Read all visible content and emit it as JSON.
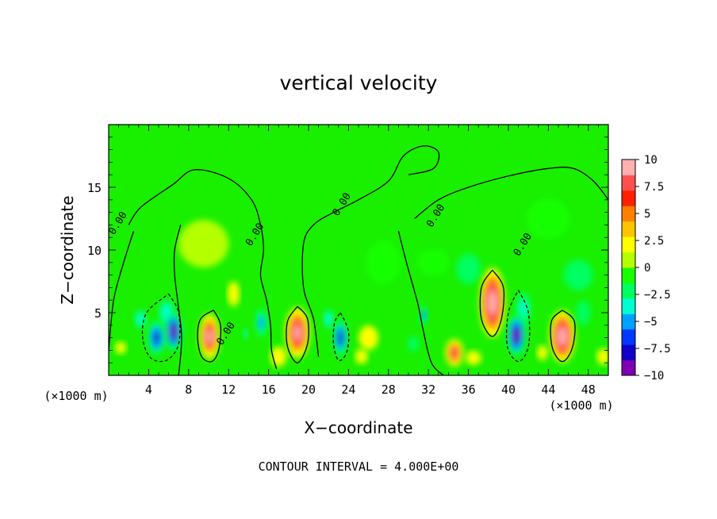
{
  "chart_data": {
    "type": "heatmap",
    "title": "vertical velocity",
    "xlabel": "X−coordinate",
    "ylabel": "Z−coordinate",
    "x_unit_left": "(×1000 m)",
    "x_unit_right": "(×1000 m)",
    "footer": "CONTOUR INTERVAL = 4.000E+00",
    "xlim": [
      0,
      50
    ],
    "ylim": [
      0,
      20
    ],
    "x_ticks": [
      4,
      8,
      12,
      16,
      20,
      24,
      28,
      32,
      36,
      40,
      44,
      48
    ],
    "x_tick_labels": [
      "4",
      "8",
      "12",
      "16",
      "20",
      "24",
      "28",
      "32",
      "36",
      "40",
      "44",
      "48"
    ],
    "y_ticks": [
      5,
      10,
      15
    ],
    "y_tick_labels": [
      "5",
      "10",
      "15"
    ],
    "colorbar": {
      "range": [
        -10,
        10
      ],
      "ticks": [
        10,
        7.5,
        5,
        2.5,
        0,
        -2.5,
        -5,
        -7.5,
        -10
      ],
      "tick_labels": [
        "10",
        "7.5",
        "5",
        "2.5",
        "0",
        "−2.5",
        "−5",
        "−7.5",
        "−10"
      ],
      "colors": [
        "#7d00b4",
        "#1000c8",
        "#0038ff",
        "#00a0ff",
        "#00ffd0",
        "#00ff60",
        "#18ff00",
        "#b4ff00",
        "#ffff00",
        "#ffc400",
        "#ff8000",
        "#ff2000",
        "#ff5050",
        "#ffb0b0"
      ]
    },
    "contour_labels": [
      {
        "text": "0.00",
        "x": 1.2,
        "y": 12.0
      },
      {
        "text": "0.00",
        "x": 14.9,
        "y": 11.1
      },
      {
        "text": "0.00",
        "x": 23.6,
        "y": 13.5
      },
      {
        "text": "0.00",
        "x": 33.0,
        "y": 12.6
      },
      {
        "text": "0.00",
        "x": 41.7,
        "y": 10.3
      },
      {
        "text": "0.00",
        "x": 12.0,
        "y": 3.2
      }
    ],
    "cells": [
      {
        "x": 10.1,
        "y": 3.1,
        "sx": 1.1,
        "sy": 1.9,
        "v": 9.0
      },
      {
        "x": 18.9,
        "y": 3.4,
        "sx": 1.3,
        "sy": 2.1,
        "v": 9.5
      },
      {
        "x": 38.4,
        "y": 5.8,
        "sx": 1.3,
        "sy": 2.8,
        "v": 11.0
      },
      {
        "x": 45.4,
        "y": 3.1,
        "sx": 1.3,
        "sy": 2.1,
        "v": 11.0
      },
      {
        "x": 34.6,
        "y": 1.8,
        "sx": 1.0,
        "sy": 1.2,
        "v": 8.0
      },
      {
        "x": 1.2,
        "y": 2.2,
        "sx": 1.4,
        "sy": 1.2,
        "v": 2.5
      },
      {
        "x": 12.5,
        "y": 6.5,
        "sx": 1.5,
        "sy": 2.5,
        "v": 2.5
      },
      {
        "x": 17.0,
        "y": 1.5,
        "sx": 2.0,
        "sy": 2.0,
        "v": 2.5
      },
      {
        "x": 25.3,
        "y": 1.5,
        "sx": 1.6,
        "sy": 1.5,
        "v": 2.5
      },
      {
        "x": 36.5,
        "y": 1.4,
        "sx": 1.8,
        "sy": 1.3,
        "v": 2.0
      },
      {
        "x": 43.4,
        "y": 1.8,
        "sx": 1.3,
        "sy": 1.5,
        "v": 2.5
      },
      {
        "x": 49.5,
        "y": 1.5,
        "sx": 1.5,
        "sy": 1.5,
        "v": 2.0
      },
      {
        "x": 4.8,
        "y": 3.0,
        "sx": 1.0,
        "sy": 1.5,
        "v": -8.0
      },
      {
        "x": 6.5,
        "y": 3.5,
        "sx": 0.9,
        "sy": 1.6,
        "v": -10.0
      },
      {
        "x": 5.8,
        "y": 5.0,
        "sx": 1.5,
        "sy": 2.0,
        "v": -3.0
      },
      {
        "x": 3.2,
        "y": 4.5,
        "sx": 1.2,
        "sy": 1.4,
        "v": -3.0
      },
      {
        "x": 15.3,
        "y": 4.2,
        "sx": 0.8,
        "sy": 1.4,
        "v": -5.5
      },
      {
        "x": 13.7,
        "y": 3.3,
        "sx": 0.5,
        "sy": 0.8,
        "v": -3.0
      },
      {
        "x": 23.2,
        "y": 3.0,
        "sx": 0.8,
        "sy": 1.6,
        "v": -8.0
      },
      {
        "x": 22.0,
        "y": 4.5,
        "sx": 1.0,
        "sy": 1.5,
        "v": -3.0
      },
      {
        "x": 31.5,
        "y": 4.8,
        "sx": 0.5,
        "sy": 0.9,
        "v": -6.0
      },
      {
        "x": 30.5,
        "y": 2.5,
        "sx": 1.4,
        "sy": 1.5,
        "v": -2.5
      },
      {
        "x": 40.8,
        "y": 3.2,
        "sx": 1.0,
        "sy": 1.7,
        "v": -10.0
      },
      {
        "x": 41.5,
        "y": 5.3,
        "sx": 1.2,
        "sy": 2.0,
        "v": -4.0
      },
      {
        "x": 47.5,
        "y": 5.0,
        "sx": 1.8,
        "sy": 2.5,
        "v": -2.5
      },
      {
        "x": 36.0,
        "y": 8.5,
        "sx": 2.5,
        "sy": 2.5,
        "v": -1.5
      },
      {
        "x": 32.5,
        "y": 9.0,
        "sx": 3.0,
        "sy": 2.0,
        "v": -1.2
      },
      {
        "x": 44.0,
        "y": 12.5,
        "sx": 4.0,
        "sy": 3.0,
        "v": -1.2
      },
      {
        "x": 47.0,
        "y": 8.0,
        "sx": 3.0,
        "sy": 2.5,
        "v": -1.5
      },
      {
        "x": 27.5,
        "y": 9.0,
        "sx": 3.0,
        "sy": 3.0,
        "v": -1.0
      },
      {
        "x": 26.0,
        "y": 3.0,
        "sx": 2.0,
        "sy": 2.0,
        "v": 1.5
      },
      {
        "x": 9.5,
        "y": 10.5,
        "sx": 4.0,
        "sy": 3.0,
        "v": 0.8
      }
    ],
    "contours": [
      {
        "style": "solid",
        "points": [
          [
            2,
            12
          ],
          [
            3.2,
            13.4
          ],
          [
            6.4,
            15.2
          ],
          [
            8.6,
            16.4
          ],
          [
            12,
            15.7
          ],
          [
            14.3,
            14
          ],
          [
            15.2,
            12
          ],
          [
            15.5,
            10
          ],
          [
            15.2,
            8
          ],
          [
            15.8,
            6
          ],
          [
            16.2,
            4
          ],
          [
            16.3,
            2
          ],
          [
            16.8,
            0.5
          ]
        ]
      },
      {
        "style": "solid",
        "points": [
          [
            7,
            0
          ],
          [
            7.3,
            3
          ],
          [
            6.9,
            6
          ],
          [
            6.6,
            8
          ],
          [
            6.6,
            10
          ],
          [
            7.2,
            12
          ]
        ]
      },
      {
        "style": "solid",
        "points": [
          [
            0,
            2
          ],
          [
            0.5,
            6
          ],
          [
            1.5,
            9
          ],
          [
            2.5,
            11.5
          ]
        ]
      },
      {
        "style": "solid",
        "points": [
          [
            10.5,
            5.2
          ],
          [
            11.2,
            4
          ],
          [
            11,
            2
          ],
          [
            10.3,
            1.1
          ],
          [
            9.3,
            1.5
          ],
          [
            8.9,
            3
          ],
          [
            9.2,
            4.5
          ],
          [
            10.5,
            5.2
          ]
        ]
      },
      {
        "style": "solid",
        "points": [
          [
            18.9,
            5.5
          ],
          [
            19.9,
            4.5
          ],
          [
            19.9,
            2.5
          ],
          [
            18.9,
            1
          ],
          [
            17.9,
            2.3
          ],
          [
            17.9,
            4.3
          ],
          [
            18.9,
            5.5
          ]
        ]
      },
      {
        "style": "solid",
        "points": [
          [
            38.4,
            8.4
          ],
          [
            39.5,
            7
          ],
          [
            39.3,
            4.5
          ],
          [
            38.4,
            3.1
          ],
          [
            37.3,
            4.5
          ],
          [
            37.3,
            7
          ],
          [
            38.4,
            8.4
          ]
        ]
      },
      {
        "style": "solid",
        "points": [
          [
            45.4,
            5.2
          ],
          [
            46.6,
            4.3
          ],
          [
            46.4,
            2.2
          ],
          [
            45.4,
            1.1
          ],
          [
            44.4,
            2.2
          ],
          [
            44.3,
            4.3
          ],
          [
            45.4,
            5.2
          ]
        ]
      },
      {
        "style": "solid",
        "points": [
          [
            30,
            16
          ],
          [
            32.5,
            16.5
          ],
          [
            33,
            17.8
          ],
          [
            31.5,
            18.3
          ],
          [
            29.5,
            17.5
          ],
          [
            28,
            15.5
          ],
          [
            25,
            14
          ],
          [
            22.5,
            13
          ],
          [
            20.5,
            12
          ],
          [
            19.5,
            10.5
          ],
          [
            19.5,
            7
          ],
          [
            20.5,
            4.5
          ],
          [
            21,
            1.5
          ]
        ]
      },
      {
        "style": "solid",
        "points": [
          [
            30.6,
            12.5
          ],
          [
            33,
            14
          ],
          [
            36,
            15
          ],
          [
            40,
            15.9
          ],
          [
            44,
            16.5
          ],
          [
            46.5,
            16.5
          ],
          [
            48.5,
            15.5
          ],
          [
            50,
            14
          ]
        ]
      },
      {
        "style": "solid",
        "points": [
          [
            29,
            11.5
          ],
          [
            29.8,
            9
          ],
          [
            30.5,
            7
          ],
          [
            31,
            5.5
          ],
          [
            31.5,
            3.5
          ],
          [
            32.3,
            1
          ],
          [
            33.5,
            0
          ]
        ]
      },
      {
        "style": "dashed",
        "points": [
          [
            6,
            6.5
          ],
          [
            7,
            5
          ],
          [
            7,
            2.5
          ],
          [
            5.8,
            1.2
          ],
          [
            4.2,
            1.4
          ],
          [
            3.4,
            3
          ],
          [
            3.8,
            5
          ],
          [
            6,
            6.5
          ]
        ]
      },
      {
        "style": "dashed",
        "points": [
          [
            41,
            6.8
          ],
          [
            42,
            5
          ],
          [
            42,
            2.3
          ],
          [
            41,
            1.1
          ],
          [
            39.9,
            2.3
          ],
          [
            40,
            5
          ],
          [
            41,
            6.8
          ]
        ]
      },
      {
        "style": "dashed",
        "points": [
          [
            23.2,
            5
          ],
          [
            24,
            3.5
          ],
          [
            23.8,
            1.8
          ],
          [
            23,
            1.2
          ],
          [
            22.5,
            2.5
          ],
          [
            22.6,
            4.2
          ],
          [
            23.2,
            5
          ]
        ]
      }
    ]
  }
}
